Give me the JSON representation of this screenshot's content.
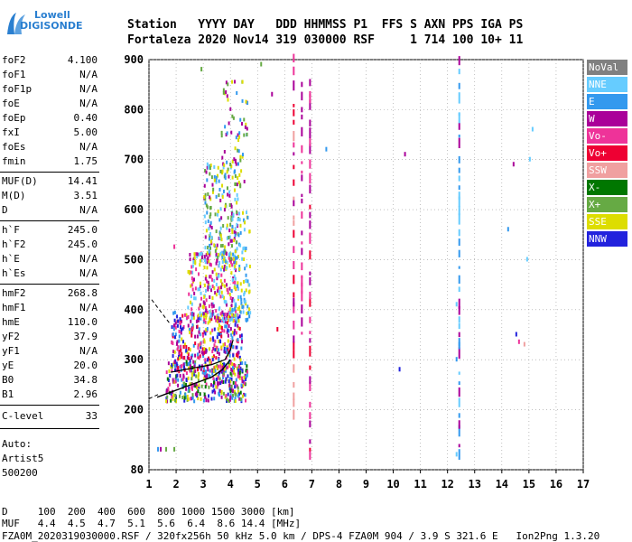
{
  "logo": {
    "line1": "Lowell",
    "line2": "DIGISONDE"
  },
  "header": {
    "row1": "Station   YYYY DAY   DDD HHMMSS P1  FFS S AXN PPS IGA PS",
    "row2": "Fortaleza 2020 Nov14 319 030000 RSF     1 714 100 10+ 11"
  },
  "params_group1": [
    {
      "label": "foF2",
      "value": "4.100"
    },
    {
      "label": "foF1",
      "value": "N/A"
    },
    {
      "label": "foF1p",
      "value": "N/A"
    },
    {
      "label": "foE",
      "value": "N/A"
    },
    {
      "label": "foEp",
      "value": "0.40"
    },
    {
      "label": "fxI",
      "value": "5.00"
    },
    {
      "label": "foEs",
      "value": "N/A"
    },
    {
      "label": "fmin",
      "value": "1.75"
    }
  ],
  "params_group2": [
    {
      "label": "MUF(D)",
      "value": "14.41"
    },
    {
      "label": "M(D)",
      "value": "3.51"
    },
    {
      "label": "D",
      "value": "N/A"
    }
  ],
  "params_group3": [
    {
      "label": "h`F",
      "value": "245.0"
    },
    {
      "label": "h`F2",
      "value": "245.0"
    },
    {
      "label": "h`E",
      "value": "N/A"
    },
    {
      "label": "h`Es",
      "value": "N/A"
    }
  ],
  "params_group4": [
    {
      "label": "hmF2",
      "value": "268.8"
    },
    {
      "label": "hmF1",
      "value": "N/A"
    },
    {
      "label": "hmE",
      "value": "110.0"
    },
    {
      "label": "yF2",
      "value": "37.9"
    },
    {
      "label": "yF1",
      "value": "N/A"
    },
    {
      "label": "yE",
      "value": "20.0"
    },
    {
      "label": "B0",
      "value": "34.8"
    },
    {
      "label": "B1",
      "value": "2.96"
    }
  ],
  "clevel": {
    "label": "C-level",
    "value": "33"
  },
  "auto": {
    "line1": "Auto:",
    "line2": "Artist5",
    "line3": "500200"
  },
  "legend": [
    {
      "label": "NoVal",
      "color": "#808080"
    },
    {
      "label": "NNE",
      "color": "#66ccff"
    },
    {
      "label": "E",
      "color": "#3399ee"
    },
    {
      "label": "W",
      "color": "#aa0099"
    },
    {
      "label": "Vo-",
      "color": "#ee3399"
    },
    {
      "label": "Vo+",
      "color": "#ee0033"
    },
    {
      "label": "SSW",
      "color": "#f0a0a0"
    },
    {
      "label": "X-",
      "color": "#007700"
    },
    {
      "label": "X+",
      "color": "#66aa44"
    },
    {
      "label": "SSE",
      "color": "#dddd00"
    },
    {
      "label": "NNW",
      "color": "#2222dd"
    }
  ],
  "footer": {
    "row1": "D     100  200  400  600  800 1000 1500 3000 [km]",
    "row2": "MUF   4.4  4.5  4.7  5.1  5.6  6.4  8.6 14.4 [MHz]",
    "row3": "FZA0M_2020319030000.RSF / 320fx256h 50 kHz 5.0 km / DPS-4 FZA0M 904 / 3.9 S 321.6 E   Ion2Png 1.3.20"
  },
  "chart_data": {
    "type": "scatter",
    "xlim": [
      1,
      17
    ],
    "ylim": [
      80,
      900
    ],
    "xticks": [
      1,
      2,
      3,
      4,
      5,
      6,
      7,
      8,
      9,
      10,
      11,
      12,
      13,
      14,
      15,
      16,
      17
    ],
    "yticks": [
      80,
      200,
      300,
      400,
      500,
      600,
      700,
      800,
      900
    ],
    "grid": true,
    "legend_placement": "right",
    "profile_curve": [
      [
        1.3,
        225
      ],
      [
        1.8,
        235
      ],
      [
        2.3,
        245
      ],
      [
        2.8,
        255
      ],
      [
        3.3,
        265
      ],
      [
        3.7,
        280
      ],
      [
        4.0,
        300
      ]
    ],
    "trace_curve": [
      [
        1.8,
        275
      ],
      [
        2.3,
        280
      ],
      [
        2.8,
        285
      ],
      [
        3.3,
        290
      ],
      [
        3.8,
        300
      ],
      [
        4.0,
        320
      ],
      [
        4.1,
        340
      ]
    ],
    "dashed_segments": [
      [
        [
          1.1,
          420
        ],
        [
          1.8,
          370
        ]
      ],
      [
        [
          1.0,
          222
        ],
        [
          1.4,
          232
        ]
      ]
    ],
    "echo_clusters": [
      {
        "x": [
          1.6,
          4.6
        ],
        "y": [
          220,
          300
        ],
        "n": 320,
        "colors": [
          "#dddd00",
          "#66aa44",
          "#ee3399",
          "#aa0099",
          "#3399ee",
          "#007700",
          "#2222dd"
        ]
      },
      {
        "x": [
          1.8,
          4.4
        ],
        "y": [
          280,
          400
        ],
        "n": 380,
        "colors": [
          "#aa0099",
          "#ee3399",
          "#2222dd",
          "#dddd00",
          "#3399ee",
          "#ee0033"
        ]
      },
      {
        "x": [
          2.4,
          4.2
        ],
        "y": [
          380,
          520
        ],
        "n": 260,
        "colors": [
          "#aa0099",
          "#ee3399",
          "#66ccff",
          "#dddd00"
        ]
      },
      {
        "x": [
          3.0,
          4.3
        ],
        "y": [
          500,
          700
        ],
        "n": 180,
        "colors": [
          "#aa0099",
          "#3399ee",
          "#66ccff",
          "#dddd00",
          "#66aa44"
        ]
      },
      {
        "x": [
          3.6,
          4.6
        ],
        "y": [
          650,
          860
        ],
        "n": 70,
        "colors": [
          "#dddd00",
          "#66aa44",
          "#3399ee",
          "#aa0099"
        ]
      },
      {
        "x": [
          4.0,
          4.7
        ],
        "y": [
          380,
          600
        ],
        "n": 110,
        "colors": [
          "#66ccff",
          "#3399ee",
          "#dddd00"
        ]
      }
    ],
    "vertical_streaks": [
      {
        "x": 6.3,
        "y": [
          180,
          900
        ],
        "colors": [
          "#aa0099",
          "#ee0033",
          "#f0a0a0",
          "#ee3399"
        ]
      },
      {
        "x": 6.6,
        "y": [
          350,
          860
        ],
        "colors": [
          "#aa0099",
          "#ee3399"
        ]
      },
      {
        "x": 6.9,
        "y": [
          100,
          860
        ],
        "colors": [
          "#aa0099",
          "#ee0033",
          "#ee3399"
        ]
      },
      {
        "x": 12.4,
        "y": [
          100,
          900
        ],
        "colors": [
          "#3399ee",
          "#66ccff",
          "#aa0099"
        ]
      }
    ],
    "isolated_points": [
      {
        "x": 2.9,
        "y": 880,
        "c": "#66aa44"
      },
      {
        "x": 5.1,
        "y": 890,
        "c": "#66aa44"
      },
      {
        "x": 5.5,
        "y": 830,
        "c": "#aa0099"
      },
      {
        "x": 7.5,
        "y": 720,
        "c": "#3399ee"
      },
      {
        "x": 10.4,
        "y": 710,
        "c": "#aa0099"
      },
      {
        "x": 12.3,
        "y": 410,
        "c": "#66ccff"
      },
      {
        "x": 12.4,
        "y": 330,
        "c": "#3399ee"
      },
      {
        "x": 12.3,
        "y": 300,
        "c": "#3399ee"
      },
      {
        "x": 14.2,
        "y": 560,
        "c": "#3399ee"
      },
      {
        "x": 14.4,
        "y": 690,
        "c": "#aa0099"
      },
      {
        "x": 14.5,
        "y": 350,
        "c": "#2222dd"
      },
      {
        "x": 14.6,
        "y": 335,
        "c": "#ee3399"
      },
      {
        "x": 14.8,
        "y": 330,
        "c": "#f0a0a0"
      },
      {
        "x": 15.0,
        "y": 700,
        "c": "#66ccff"
      },
      {
        "x": 15.1,
        "y": 760,
        "c": "#66ccff"
      },
      {
        "x": 14.9,
        "y": 500,
        "c": "#66ccff"
      },
      {
        "x": 10.2,
        "y": 280,
        "c": "#2222dd"
      },
      {
        "x": 12.3,
        "y": 110,
        "c": "#66ccff"
      },
      {
        "x": 5.7,
        "y": 360,
        "c": "#ee0033"
      },
      {
        "x": 1.9,
        "y": 525,
        "c": "#ee3399"
      },
      {
        "x": 1.4,
        "y": 120,
        "c": "#aa0099"
      },
      {
        "x": 1.6,
        "y": 120,
        "c": "#66aa44"
      },
      {
        "x": 1.9,
        "y": 120,
        "c": "#66aa44"
      },
      {
        "x": 1.3,
        "y": 120,
        "c": "#3399ee"
      }
    ]
  }
}
